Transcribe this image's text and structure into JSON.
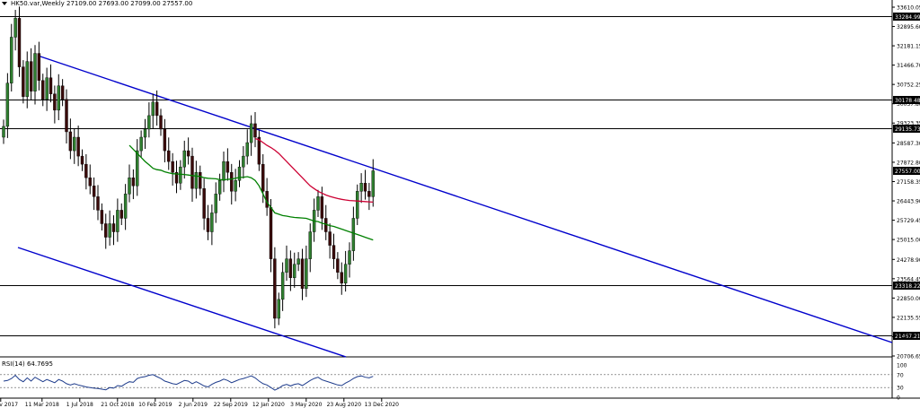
{
  "header": {
    "symbol_line": "HK50.var,Weekly  27109.00 27693.00 27099.00 27557.00"
  },
  "rsi": {
    "label": "RSI(14) 64.7695",
    "levels": [
      "100",
      "70",
      "30",
      "0"
    ]
  },
  "colors": {
    "trendline": "#0000cc",
    "ma_fast": "#008000",
    "ma_slow": "#cc0033",
    "rsi_line": "#1e3c8c",
    "level_line": "#000000"
  },
  "chart_data": {
    "type": "candlestick",
    "price_axis": {
      "ticks": [
        "33610.05",
        "32895.60",
        "32181.15",
        "31466.70",
        "30752.25",
        "30037.80",
        "29323.35",
        "28587.30",
        "27872.80",
        "27158.35",
        "26443.90",
        "25729.45",
        "25015.00",
        "24278.90",
        "23564.45",
        "22850.00",
        "22135.55",
        "21421.10",
        "20706.65"
      ],
      "range": [
        20706.65,
        33610.05
      ]
    },
    "x_axis": {
      "ticks": [
        "19 Nov 2017",
        "11 Mar 2018",
        "1 Jul 2018",
        "21 Oct 2018",
        "10 Feb 2019",
        "2 Jun 2019",
        "22 Sep 2019",
        "12 Jan 2020",
        "3 May 2020",
        "23 Aug 2020",
        "13 Dec 2020"
      ]
    },
    "horizontal_levels": [
      {
        "value": 33284.99,
        "label": "33284.99"
      },
      {
        "value": 30178.48,
        "label": "30178.48"
      },
      {
        "value": 29135.73,
        "label": "29135.73"
      },
      {
        "value": 27557.0,
        "label": "27557.00"
      },
      {
        "value": 23318.22,
        "label": "23318.22"
      },
      {
        "value": 21467.21,
        "label": "21467.21"
      }
    ],
    "closes": [
      29200,
      30800,
      32500,
      33200,
      31400,
      30300,
      31600,
      30500,
      31900,
      30900,
      30200,
      31000,
      30400,
      29800,
      30700,
      30200,
      29000,
      28300,
      28800,
      28100,
      27800,
      27300,
      27000,
      26600,
      26100,
      25600,
      25100,
      25600,
      25300,
      26100,
      25800,
      26700,
      27300,
      27000,
      28300,
      28800,
      29100,
      29600,
      30100,
      29600,
      29100,
      28300,
      27900,
      27500,
      27100,
      27700,
      28300,
      28100,
      26900,
      27500,
      26900,
      25800,
      25300,
      26000,
      26700,
      27200,
      27900,
      27500,
      26800,
      27200,
      27700,
      28100,
      28600,
      29300,
      28800,
      27800,
      26800,
      26200,
      24300,
      22100,
      22800,
      23800,
      24300,
      23600,
      24100,
      24300,
      23200,
      24300,
      25300,
      26100,
      26600,
      25800,
      25300,
      24800,
      24300,
      23800,
      23400,
      24100,
      24600,
      25800,
      26800,
      27100,
      26800,
      26600,
      27557
    ],
    "ma_fast": {
      "start_index": 32,
      "values": [
        28500,
        28350,
        28200,
        28050,
        27900,
        27780,
        27650,
        27600,
        27580,
        27520,
        27480,
        27450,
        27440,
        27430,
        27420,
        27400,
        27380,
        27360,
        27350,
        27300,
        27280,
        27270,
        27260,
        27230,
        27220,
        27240,
        27250,
        27280,
        27310,
        27320,
        27340,
        27300,
        27200,
        27000,
        26700,
        26400,
        26200,
        26000,
        25950,
        25900,
        25880,
        25850,
        25830,
        25820,
        25810,
        25800,
        25750,
        25700,
        25680,
        25620,
        25580,
        25530,
        25500,
        25450,
        25400,
        25350,
        25300,
        25250,
        25200,
        25150,
        25100,
        25050,
        25000
      ]
    },
    "ma_slow": {
      "start_index": 64,
      "values": [
        28750,
        28700,
        28600,
        28500,
        28420,
        28320,
        28200,
        28050,
        27900,
        27750,
        27600,
        27450,
        27300,
        27150,
        27000,
        26900,
        26800,
        26730,
        26660,
        26610,
        26570,
        26530,
        26500,
        26480,
        26460,
        26450,
        26440,
        26430,
        26420,
        26410,
        26400
      ]
    },
    "rsi": {
      "range": [
        0,
        100
      ],
      "levels": [
        70,
        30
      ],
      "values": [
        50,
        52,
        58,
        68,
        55,
        48,
        60,
        50,
        62,
        55,
        48,
        55,
        50,
        45,
        55,
        50,
        42,
        38,
        42,
        38,
        35,
        32,
        30,
        28,
        27,
        25,
        23,
        30,
        28,
        36,
        34,
        42,
        48,
        46,
        58,
        62,
        64,
        68,
        70,
        64,
        58,
        50,
        46,
        42,
        40,
        46,
        52,
        50,
        42,
        48,
        42,
        35,
        32,
        40,
        46,
        50,
        56,
        52,
        45,
        50,
        55,
        58,
        62,
        66,
        60,
        50,
        42,
        38,
        30,
        22,
        28,
        36,
        40,
        35,
        40,
        42,
        36,
        44,
        52,
        58,
        62,
        54,
        50,
        46,
        42,
        38,
        36,
        44,
        50,
        58,
        64,
        66,
        62,
        60,
        64.77
      ]
    }
  }
}
